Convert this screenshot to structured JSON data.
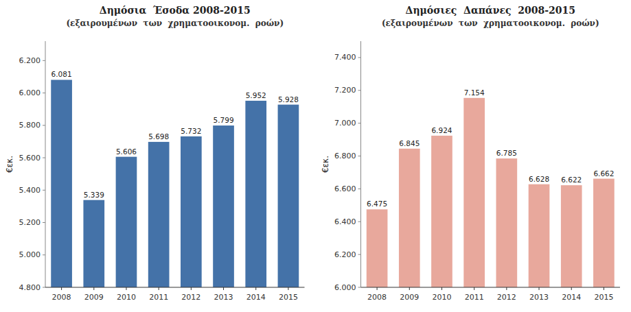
{
  "chart_data": [
    {
      "type": "bar",
      "title": "Δημόσια  Έσοδα 2008-2015",
      "subtitle": "(εξαιρουμένων  των  χρηματοοικονομ.  ροών)",
      "ylabel": "€εκ.",
      "categories": [
        "2008",
        "2009",
        "2010",
        "2011",
        "2012",
        "2013",
        "2014",
        "2015"
      ],
      "values": [
        6.081,
        5.339,
        5.606,
        5.698,
        5.732,
        5.799,
        5.952,
        5.928
      ],
      "color": "#4472A8",
      "ylim": [
        4.8,
        6.32
      ],
      "yticks": [
        {
          "value": 4.8,
          "label": "4.800"
        },
        {
          "value": 5.0,
          "label": "5.000"
        },
        {
          "value": 5.2,
          "label": "5.200"
        },
        {
          "value": 5.4,
          "label": "5.400"
        },
        {
          "value": 5.6,
          "label": "5.600"
        },
        {
          "value": 5.8,
          "label": "5.800"
        },
        {
          "value": 6.0,
          "label": "6.000"
        },
        {
          "value": 6.2,
          "label": "6.200"
        }
      ],
      "grid": false,
      "data_labels": true
    },
    {
      "type": "bar",
      "title": "Δημόσιες  Δαπάνες  2008-2015",
      "subtitle": "(εξαιρουμένων  των  χρηματοοικονομ.  ροών)",
      "ylabel": "€εκ.",
      "categories": [
        "2008",
        "2009",
        "2010",
        "2011",
        "2012",
        "2013",
        "2014",
        "2015"
      ],
      "values": [
        6.475,
        6.845,
        6.924,
        7.154,
        6.785,
        6.628,
        6.622,
        6.662
      ],
      "color": "#E8A89C",
      "ylim": [
        6.0,
        7.5
      ],
      "yticks": [
        {
          "value": 6.0,
          "label": "6.000"
        },
        {
          "value": 6.2,
          "label": "6.200"
        },
        {
          "value": 6.4,
          "label": "6.400"
        },
        {
          "value": 6.6,
          "label": "6.600"
        },
        {
          "value": 6.8,
          "label": "6.800"
        },
        {
          "value": 7.0,
          "label": "7.000"
        },
        {
          "value": 7.2,
          "label": "7.200"
        },
        {
          "value": 7.4,
          "label": "7.400"
        }
      ],
      "grid": false,
      "data_labels": true
    }
  ]
}
